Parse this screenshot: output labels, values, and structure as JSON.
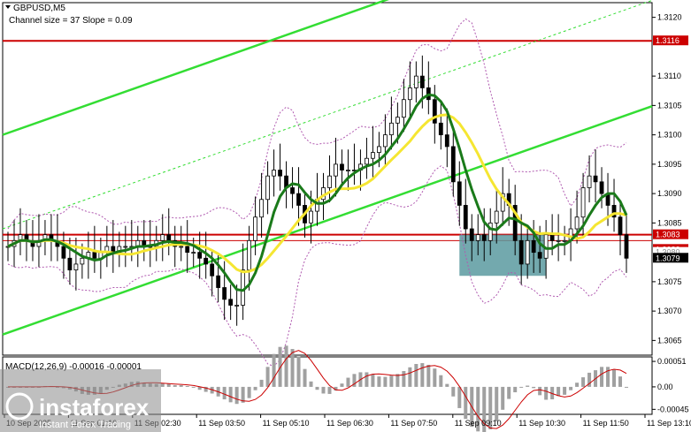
{
  "header": {
    "symbol": "GBPUSD,M5",
    "indicator": "Channel size = 37 Slope = 0.09"
  },
  "macd": {
    "label": "MACD(12,26,9) -0.00016 -0.00001",
    "ticks": [
      "0.00051",
      "0.00",
      "-0.00045"
    ],
    "tick_values": [
      0.00051,
      0.0,
      -0.00045
    ]
  },
  "price_labels": {
    "top_red": "1.3116",
    "resistance_1": "1.3083",
    "resistance_2": "1.3082",
    "partial": "1.3080",
    "current": "1.3079"
  },
  "watermark": {
    "brand": "instaforex",
    "tagline": "Instant Forex Trading"
  },
  "colors": {
    "background": "#ffffff",
    "candle": "#000000",
    "channel": "#33dd33",
    "ma_fast": "#1a7a1a",
    "ma_slow": "#f5e632",
    "bollinger": "#b05ab0",
    "level": "#cc0000",
    "box": "#5a9aa0",
    "macd_signal": "#cc0000",
    "macd_hist": "#a0a0a0"
  },
  "chart_data": {
    "type": "candlestick",
    "symbol": "GBPUSD",
    "timeframe": "M5",
    "y_ticks": [
      "1.3120",
      "1.3110",
      "1.3105",
      "1.3100",
      "1.3095",
      "1.3090",
      "1.3085",
      "1.3075",
      "1.3070",
      "1.3065"
    ],
    "y_tick_values": [
      1.312,
      1.311,
      1.3105,
      1.31,
      1.3095,
      1.309,
      1.3085,
      1.3075,
      1.307,
      1.3065
    ],
    "ylim": [
      1.30625,
      1.31225
    ],
    "x_ticks": [
      "10 Sep 2025",
      "11 Sep 01:10",
      "11 Sep 02:30",
      "11 Sep 03:50",
      "11 Sep 05:10",
      "11 Sep 06:30",
      "11 Sep 07:50",
      "11 Sep 09:10",
      "11 Sep 10:30",
      "11 Sep 11:50",
      "11 Sep 13:10"
    ],
    "levels": [
      {
        "price": 1.3116,
        "label": "1.3116"
      },
      {
        "price": 1.3083,
        "label": "1.3083"
      },
      {
        "price": 1.3082,
        "label": "1.3082"
      }
    ],
    "current_price": 1.3079,
    "close_series": [
      1.3081,
      1.3082,
      1.3083,
      1.3082,
      1.3081,
      1.3082,
      1.3083,
      1.3082,
      1.3081,
      1.3079,
      1.3077,
      1.3078,
      1.3079,
      1.308,
      1.3079,
      1.308,
      1.3081,
      1.308,
      1.3081,
      1.3081,
      1.3081,
      1.3082,
      1.3081,
      1.3081,
      1.3082,
      1.3083,
      1.3082,
      1.3081,
      1.3081,
      1.308,
      1.308,
      1.3079,
      1.3078,
      1.3076,
      1.3074,
      1.3072,
      1.3071,
      1.3071,
      1.3077,
      1.3082,
      1.3086,
      1.3089,
      1.3093,
      1.3094,
      1.3093,
      1.3091,
      1.309,
      1.3088,
      1.3085,
      1.3087,
      1.3089,
      1.3091,
      1.3093,
      1.3095,
      1.3094,
      1.3094,
      1.3094,
      1.3095,
      1.3096,
      1.3097,
      1.3098,
      1.31,
      1.3102,
      1.3103,
      1.3106,
      1.3108,
      1.311,
      1.3108,
      1.3106,
      1.3102,
      1.31,
      1.3098,
      1.3092,
      1.3088,
      1.3084,
      1.3082,
      1.3083,
      1.3082,
      1.3085,
      1.3087,
      1.309,
      1.3088,
      1.3082,
      1.3078,
      1.3082,
      1.308,
      1.3079,
      1.3083,
      1.3082,
      1.3082,
      1.3082,
      1.3084,
      1.3086,
      1.3091,
      1.3093,
      1.3092,
      1.309,
      1.3088,
      1.3086,
      1.3083,
      1.3079
    ],
    "box": {
      "from_index": 73,
      "to_index": 87,
      "top": 1.3083,
      "bottom": 1.3076
    }
  }
}
